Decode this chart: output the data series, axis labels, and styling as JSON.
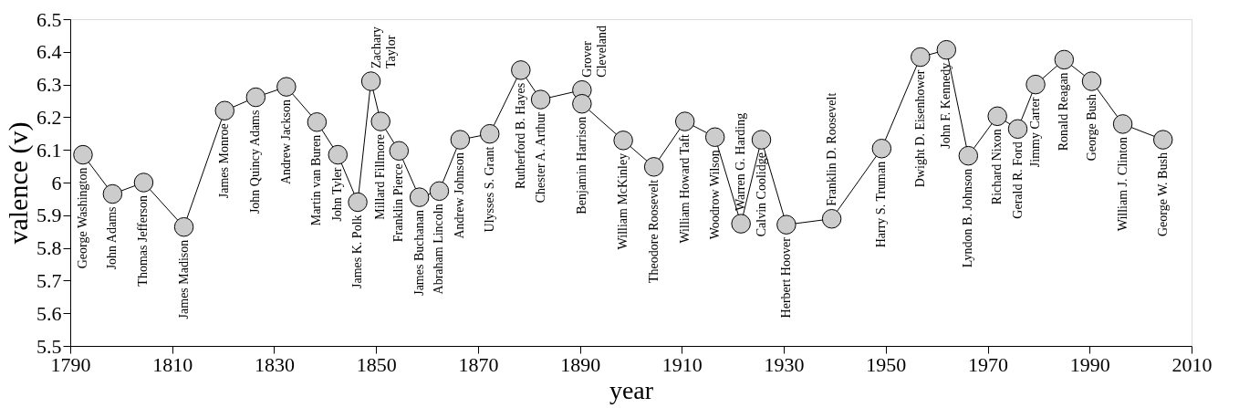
{
  "chart_data": {
    "type": "line",
    "xlabel": "year",
    "ylabel": "valence (v)",
    "xlim": [
      1790,
      2010
    ],
    "xticks": [
      1790,
      1810,
      1830,
      1850,
      1870,
      1890,
      1910,
      1930,
      1950,
      1970,
      1990,
      2010
    ],
    "ylim": [
      5.5,
      6.5
    ],
    "yticks": [
      5.5,
      5.6,
      5.7,
      5.8,
      5.9,
      6,
      6.1,
      6.2,
      6.3,
      6.4,
      6.5
    ],
    "grid": false,
    "marker": "circle",
    "line_style": "solid",
    "series": [
      {
        "color": "#cccccc",
        "x": [
          1792.5,
          1798.3,
          1804.4,
          1812.3,
          1820.3,
          1826.4,
          1832.4,
          1838.4,
          1842.5,
          1846.4,
          1849.0,
          1850.9,
          1854.5,
          1858.5,
          1862.4,
          1866.5,
          1872.3,
          1878.4,
          1882.3,
          1890.4,
          1890.4,
          1898.5,
          1904.5,
          1910.6,
          1916.5,
          1921.6,
          1925.6,
          1930.5,
          1939.4,
          1949.2,
          1956.8,
          1961.9,
          1966.2,
          1971.9,
          1975.9,
          1979.4,
          1985.0,
          1990.4,
          1996.5,
          2004.4
        ],
        "values": [
          6.085,
          5.965,
          6.0,
          5.864,
          6.22,
          6.261,
          6.293,
          6.185,
          6.085,
          5.94,
          6.31,
          6.187,
          6.097,
          5.955,
          5.974,
          6.131,
          6.149,
          6.344,
          6.254,
          6.283,
          6.241,
          6.129,
          6.048,
          6.187,
          6.139,
          5.874,
          6.131,
          5.871,
          5.889,
          6.104,
          6.384,
          6.406,
          6.082,
          6.203,
          6.164,
          6.3,
          6.376,
          6.31,
          6.179,
          6.131
        ]
      }
    ],
    "annotations": [
      {
        "text": "George Washington",
        "x": 1792.5,
        "y": 6.085
      },
      {
        "text": "John Adams",
        "x": 1798.3,
        "y": 5.965
      },
      {
        "text": "Thomas Jefferson",
        "x": 1804.4,
        "y": 6.0
      },
      {
        "text": "James Madison",
        "x": 1812.3,
        "y": 5.864
      },
      {
        "text": "James Monroe",
        "x": 1820.3,
        "y": 6.22
      },
      {
        "text": "John Quincy Adams",
        "x": 1826.4,
        "y": 6.261
      },
      {
        "text": "Andrew Jackson",
        "x": 1832.4,
        "y": 6.293
      },
      {
        "text": "Martin van Buren",
        "x": 1838.4,
        "y": 6.185
      },
      {
        "text": "John Tyler",
        "x": 1842.5,
        "y": 6.085
      },
      {
        "text": "James K. Polk",
        "x": 1846.4,
        "y": 5.94
      },
      {
        "text": "Zachary Taylor",
        "x": 1849.0,
        "y": 6.31
      },
      {
        "text": "Millard Fillmore",
        "x": 1850.9,
        "y": 6.187
      },
      {
        "text": "Franklin Pierce",
        "x": 1854.5,
        "y": 6.097
      },
      {
        "text": "James Buchanan",
        "x": 1858.5,
        "y": 5.955
      },
      {
        "text": "Abraham Lincoln",
        "x": 1862.4,
        "y": 5.974
      },
      {
        "text": "Andrew Johnson",
        "x": 1866.5,
        "y": 6.131
      },
      {
        "text": "Ulysses S. Grant",
        "x": 1872.3,
        "y": 6.149
      },
      {
        "text": "Rutherford B. Hayes",
        "x": 1878.4,
        "y": 6.344
      },
      {
        "text": "Chester A. Arthur",
        "x": 1882.3,
        "y": 6.254
      },
      {
        "text": "Grover Cleveland",
        "x": 1890.4,
        "y": 6.283
      },
      {
        "text": "Benjamin Harrison",
        "x": 1890.4,
        "y": 6.241
      },
      {
        "text": "William McKinley",
        "x": 1898.5,
        "y": 6.129
      },
      {
        "text": "Theodore Roosevelt",
        "x": 1904.5,
        "y": 6.048
      },
      {
        "text": "William Howard Taft",
        "x": 1910.6,
        "y": 6.187
      },
      {
        "text": "Woodrow Wilson",
        "x": 1916.5,
        "y": 6.139
      },
      {
        "text": "Warren G. Harding",
        "x": 1921.6,
        "y": 5.874
      },
      {
        "text": "Calvin Coolidge",
        "x": 1925.6,
        "y": 6.131
      },
      {
        "text": "Herbert Hoover",
        "x": 1930.5,
        "y": 5.871
      },
      {
        "text": "Franklin D. Roosevelt",
        "x": 1939.4,
        "y": 5.889
      },
      {
        "text": "Harry S. Truman",
        "x": 1949.2,
        "y": 6.104
      },
      {
        "text": "Dwight D. Eisenhower",
        "x": 1956.8,
        "y": 6.384
      },
      {
        "text": "John F. Kennedy",
        "x": 1961.9,
        "y": 6.406
      },
      {
        "text": "Lyndon B. Johnson",
        "x": 1966.2,
        "y": 6.082
      },
      {
        "text": "Richard Nixon",
        "x": 1971.9,
        "y": 6.203
      },
      {
        "text": "Gerald R. Ford",
        "x": 1975.9,
        "y": 6.164
      },
      {
        "text": "Jimmy Carter",
        "x": 1979.4,
        "y": 6.3
      },
      {
        "text": "Ronald Reagan",
        "x": 1985.0,
        "y": 6.376
      },
      {
        "text": "George Bush",
        "x": 1990.4,
        "y": 6.31
      },
      {
        "text": "William J. Clinton",
        "x": 1996.5,
        "y": 6.179
      },
      {
        "text": "George W. Bush",
        "x": 2004.4,
        "y": 6.131
      }
    ]
  }
}
